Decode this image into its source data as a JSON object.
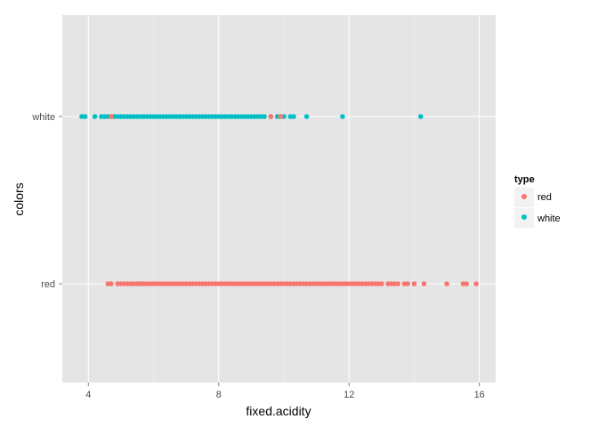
{
  "chart_data": {
    "type": "scatter",
    "xlabel": "fixed.acidity",
    "ylabel": "colors",
    "xlim": [
      3.2,
      16.5
    ],
    "x_ticks": [
      "4",
      "8",
      "12",
      "16"
    ],
    "x_tick_values": [
      4,
      8,
      12,
      16
    ],
    "y_categories": [
      "red",
      "white"
    ],
    "grid": true,
    "legend_position": "right",
    "legend": {
      "title": "type",
      "entries": [
        {
          "label": "red",
          "color": "#F8766D"
        },
        {
          "label": "white",
          "color": "#00BFC4"
        }
      ]
    },
    "series": [
      {
        "name": "white",
        "color": "#00BFC4",
        "y": "white",
        "x": [
          3.8,
          3.9,
          4.2,
          4.4,
          4.5,
          4.6,
          4.7,
          4.8,
          4.9,
          5.0,
          5.1,
          5.2,
          5.3,
          5.4,
          5.5,
          5.6,
          5.7,
          5.8,
          5.9,
          6.0,
          6.1,
          6.2,
          6.3,
          6.4,
          6.5,
          6.6,
          6.7,
          6.8,
          6.9,
          7.0,
          7.1,
          7.2,
          7.3,
          7.4,
          7.5,
          7.6,
          7.7,
          7.8,
          7.9,
          8.0,
          8.1,
          8.2,
          8.3,
          8.4,
          8.5,
          8.6,
          8.7,
          8.8,
          8.9,
          9.0,
          9.1,
          9.2,
          9.3,
          9.4,
          9.6,
          9.8,
          10.0,
          10.2,
          10.3,
          10.7,
          11.8,
          14.2
        ],
        "also_plotted_on": {
          "y": "red",
          "x": [
            5.6
          ]
        }
      },
      {
        "name": "red",
        "color": "#F8766D",
        "y": "red",
        "x": [
          4.6,
          4.7,
          4.9,
          5.0,
          5.1,
          5.2,
          5.3,
          5.4,
          5.5,
          5.6,
          5.7,
          5.8,
          5.9,
          6.0,
          6.1,
          6.2,
          6.3,
          6.4,
          6.5,
          6.6,
          6.7,
          6.8,
          6.9,
          7.0,
          7.1,
          7.2,
          7.3,
          7.4,
          7.5,
          7.6,
          7.7,
          7.8,
          7.9,
          8.0,
          8.1,
          8.2,
          8.3,
          8.4,
          8.5,
          8.6,
          8.7,
          8.8,
          8.9,
          9.0,
          9.1,
          9.2,
          9.3,
          9.4,
          9.5,
          9.6,
          9.7,
          9.8,
          9.9,
          10.0,
          10.1,
          10.2,
          10.3,
          10.4,
          10.5,
          10.6,
          10.7,
          10.8,
          10.9,
          11.0,
          11.1,
          11.2,
          11.3,
          11.4,
          11.5,
          11.6,
          11.7,
          11.8,
          11.9,
          12.0,
          12.1,
          12.2,
          12.3,
          12.4,
          12.5,
          12.6,
          12.7,
          12.8,
          12.9,
          13.0,
          13.2,
          13.3,
          13.4,
          13.5,
          13.7,
          13.8,
          14.0,
          14.3,
          15.0,
          15.5,
          15.6,
          15.9
        ],
        "also_plotted_on": {
          "y": "white",
          "x": [
            4.7,
            9.6,
            9.9
          ]
        }
      }
    ]
  }
}
